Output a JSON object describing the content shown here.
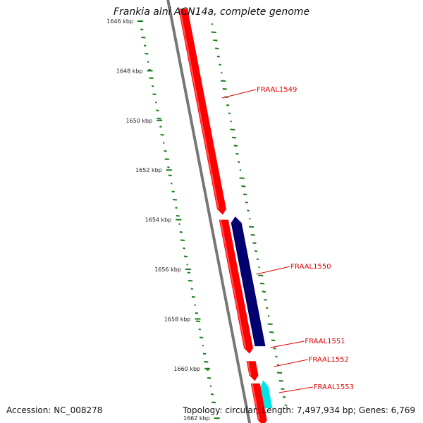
{
  "title": "Frankia alni ACN14a, complete genome",
  "accession": "Accession: NC_008278",
  "summary": "Topology: circular; Length: 7,497,934 bp; Genes: 6,769",
  "colors": {
    "background": "#ffffff",
    "backbone": "#777777",
    "forward_gene": "#ff0000",
    "reverse_gene": "#000070",
    "rna_gene": "#00e5e5",
    "gc_skew_marks": "#1a7a1a",
    "label_text": "#dd0000"
  },
  "scale_ticks": [
    {
      "kbp": 1646,
      "label": "1646 kbp"
    },
    {
      "kbp": 1648,
      "label": "1648 kbp"
    },
    {
      "kbp": 1650,
      "label": "1650 kbp"
    },
    {
      "kbp": 1652,
      "label": "1652 kbp"
    },
    {
      "kbp": 1654,
      "label": "1654 kbp"
    },
    {
      "kbp": 1656,
      "label": "1656 kbp"
    },
    {
      "kbp": 1658,
      "label": "1658 kbp"
    },
    {
      "kbp": 1660,
      "label": "1660 kbp"
    },
    {
      "kbp": 1662,
      "label": "1662 kbp"
    }
  ],
  "genes": [
    {
      "name": "FRAAL1549",
      "strand": "forward",
      "color_key": "forward_gene",
      "start_kbp": 1645.5,
      "end_kbp": 1653.8
    },
    {
      "name": "FRAAL1550",
      "strand": "reverse",
      "color_key": "reverse_gene",
      "start_kbp": 1653.9,
      "end_kbp": 1659.1
    },
    {
      "name": "FRAAL1551",
      "strand": "forward",
      "color_key": "forward_gene",
      "start_kbp": 1654.0,
      "end_kbp": 1659.4
    },
    {
      "name": "FRAAL1552",
      "strand": "forward",
      "color_key": "forward_gene",
      "start_kbp": 1659.7,
      "end_kbp": 1660.5
    },
    {
      "name": "FRAAL1553",
      "strand": "reverse",
      "color_key": "rna_gene",
      "start_kbp": 1660.5,
      "end_kbp": 1661.6
    },
    {
      "name": "",
      "strand": "forward",
      "color_key": "forward_gene",
      "start_kbp": 1660.6,
      "end_kbp": 1662.3
    }
  ]
}
